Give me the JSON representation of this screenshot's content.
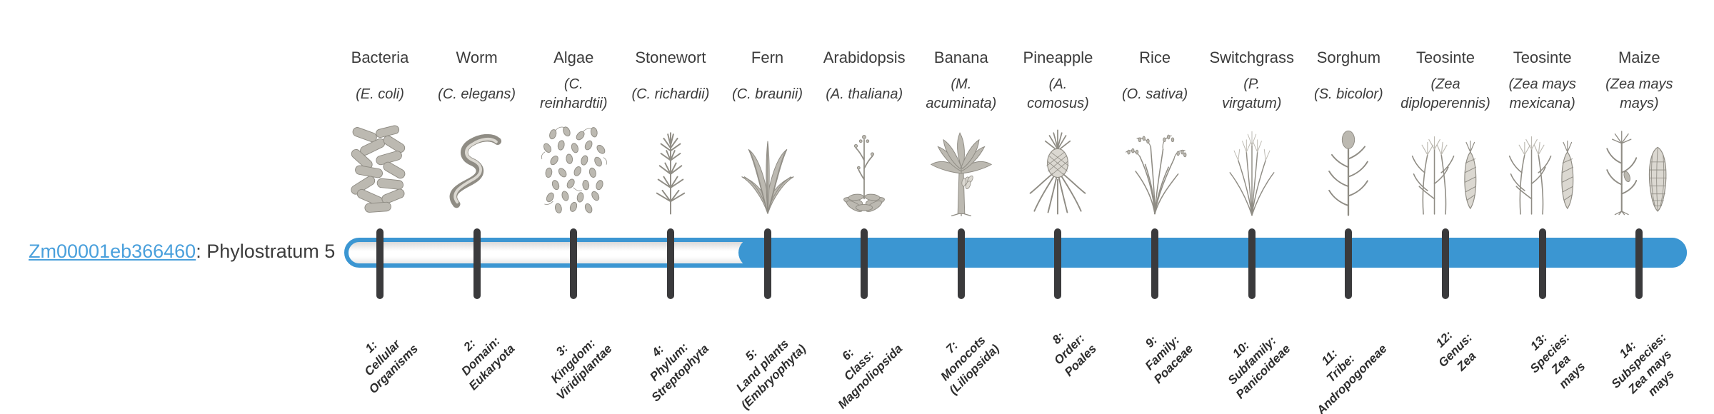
{
  "gene": {
    "id": "Zm00001eb366460",
    "separator": ": ",
    "label": "Phylostratum 5",
    "phylostratum": 5
  },
  "timeline": {
    "fill_from_stratum": 5,
    "total_strata": 14
  },
  "colors": {
    "background": "#ffffff",
    "bar_fill": "#3b96d2",
    "bar_unfilled_top": "#d9d9d9",
    "bar_unfilled_mid": "#ffffff",
    "bar_unfilled_bottom": "#e8e8e8",
    "tick": "#3a3a3c",
    "link": "#4aa0dc",
    "text_dark": "#3c3c3c",
    "stratum_text": "#2d2d2d",
    "icon_fill": "#bcb9b1",
    "icon_stroke": "#8f8c84",
    "icon_light": "#dbd8d1"
  },
  "taxa": [
    {
      "name": "Bacteria",
      "scientific": "(E. coli)",
      "icon": "bacteria",
      "stratum": 1,
      "stratum_label": "1:\nCellular\nOrganisms"
    },
    {
      "name": "Worm",
      "scientific": "(C. elegans)",
      "icon": "worm",
      "stratum": 2,
      "stratum_label": "2:\nDomain:\nEukaryota"
    },
    {
      "name": "Algae",
      "scientific": "(C.\nreinhardtii)",
      "icon": "algae",
      "stratum": 3,
      "stratum_label": "3:\nKingdom:\nViridiplantae"
    },
    {
      "name": "Stonewort",
      "scientific": "(C. richardii)",
      "icon": "stonewort",
      "stratum": 4,
      "stratum_label": "4:\nPhylum:\nStreptophyta"
    },
    {
      "name": "Fern",
      "scientific": "(C. braunii)",
      "icon": "fern",
      "stratum": 5,
      "stratum_label": "5:\nLand plants\n(Embryophyta)"
    },
    {
      "name": "Arabidopsis",
      "scientific": "(A. thaliana)",
      "icon": "arabidopsis",
      "stratum": 6,
      "stratum_label": "6:\nClass:\nMagnoliopsida"
    },
    {
      "name": "Banana",
      "scientific": "(M.\nacuminata)",
      "icon": "banana",
      "stratum": 7,
      "stratum_label": "7:\nMonocots\n(Liliopsida)"
    },
    {
      "name": "Pineapple",
      "scientific": "(A.\ncomosus)",
      "icon": "pineapple",
      "stratum": 8,
      "stratum_label": "8:\nOrder:\nPoales"
    },
    {
      "name": "Rice",
      "scientific": "(O. sativa)",
      "icon": "rice",
      "stratum": 9,
      "stratum_label": "9:\nFamily:\nPoaceae"
    },
    {
      "name": "Switchgrass",
      "scientific": "(P.\nvirgatum)",
      "icon": "switchgrass",
      "stratum": 10,
      "stratum_label": "10:\nSubfamily:\nPanicoideae"
    },
    {
      "name": "Sorghum",
      "scientific": "(S. bicolor)",
      "icon": "sorghum",
      "stratum": 11,
      "stratum_label": "11:\nTribe:\nAndropogoneae"
    },
    {
      "name": "Teosinte",
      "scientific": "(Zea\ndiploperennis)",
      "icon": "teosinte",
      "stratum": 12,
      "stratum_label": "12:\nGenus:\nZea"
    },
    {
      "name": "Teosinte",
      "scientific": "(Zea mays\nmexicana)",
      "icon": "teosinte",
      "stratum": 13,
      "stratum_label": "13:\nSpecies:\nZea\nmays"
    },
    {
      "name": "Maize",
      "scientific": "(Zea mays\nmays)",
      "icon": "maize",
      "stratum": 14,
      "stratum_label": "14:\nSubspecies:\nZea mays\nmays"
    }
  ]
}
